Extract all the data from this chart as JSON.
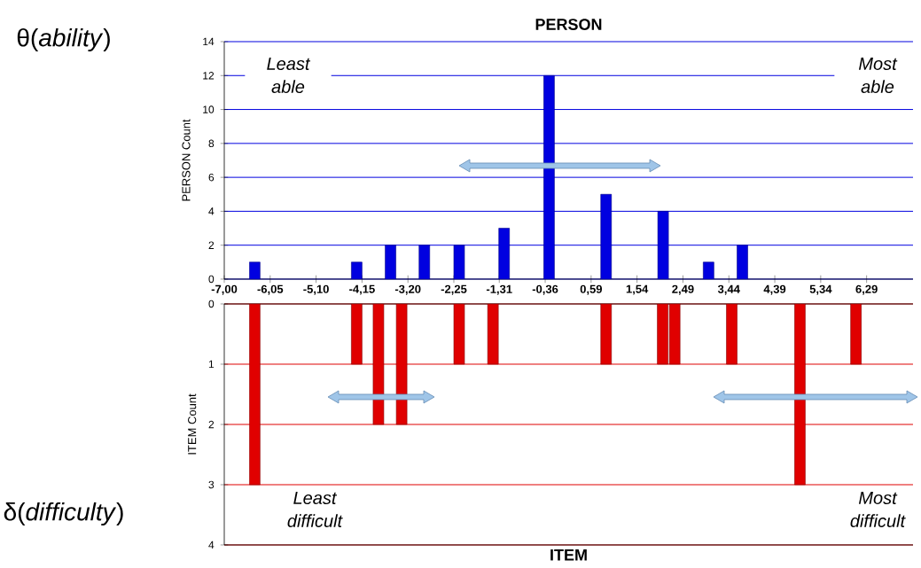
{
  "chart_data": [
    {
      "type": "bar",
      "title": "PERSON",
      "ylabel": "PERSON Count",
      "color": "#0000e0",
      "grid": "y",
      "x": [
        -6.37,
        -4.26,
        -3.56,
        -2.86,
        -2.14,
        -1.21,
        -0.28,
        0.9,
        2.08,
        3.02,
        3.72
      ],
      "values": [
        1,
        1,
        2,
        2,
        2,
        3,
        12,
        5,
        4,
        1,
        2
      ],
      "xlim": [
        -7,
        7.25
      ],
      "xticks": [
        {
          "value": -7,
          "label": "-7,00"
        },
        {
          "value": -6.05,
          "label": "-6,05"
        },
        {
          "value": -5.1,
          "label": "-5,10"
        },
        {
          "value": -4.15,
          "label": "-4,15"
        },
        {
          "value": -3.2,
          "label": "-3,20"
        },
        {
          "value": -2.25,
          "label": "-2,25"
        },
        {
          "value": -1.31,
          "label": "-1,31"
        },
        {
          "value": -0.36,
          "label": "-0,36"
        },
        {
          "value": 0.59,
          "label": "0,59"
        },
        {
          "value": 1.54,
          "label": "1,54"
        },
        {
          "value": 2.49,
          "label": "2,49"
        },
        {
          "value": 3.44,
          "label": "3,44"
        },
        {
          "value": 4.39,
          "label": "4,39"
        },
        {
          "value": 5.34,
          "label": "5,34"
        },
        {
          "value": 6.29,
          "label": "6,29"
        }
      ],
      "ylim": [
        0,
        14
      ],
      "yticks": [
        0,
        2,
        4,
        6,
        8,
        10,
        12,
        14
      ],
      "annotations": [
        "θ(*ability*)",
        "Least able",
        "Most able"
      ]
    },
    {
      "type": "bar",
      "xlabel": "ITEM",
      "ylabel": "ITEM Count",
      "color": "#e00000",
      "grid": "y",
      "tick_labels": "y",
      "x": [
        -6.37,
        -4.26,
        -3.81,
        -3.33,
        -2.14,
        -1.44,
        0.9,
        2.07,
        2.32,
        3.5,
        4.91,
        6.07
      ],
      "values": [
        3,
        1,
        2,
        2,
        1,
        1,
        1,
        1,
        1,
        1,
        3,
        1
      ],
      "xlim": [
        -7,
        7.25
      ],
      "ylim": [
        4,
        0
      ],
      "yticks": [
        0,
        1,
        2,
        3,
        4
      ],
      "annotations": [
        "δ(*difficulty*)",
        "Least difficult",
        "Most difficult"
      ]
    }
  ]
}
